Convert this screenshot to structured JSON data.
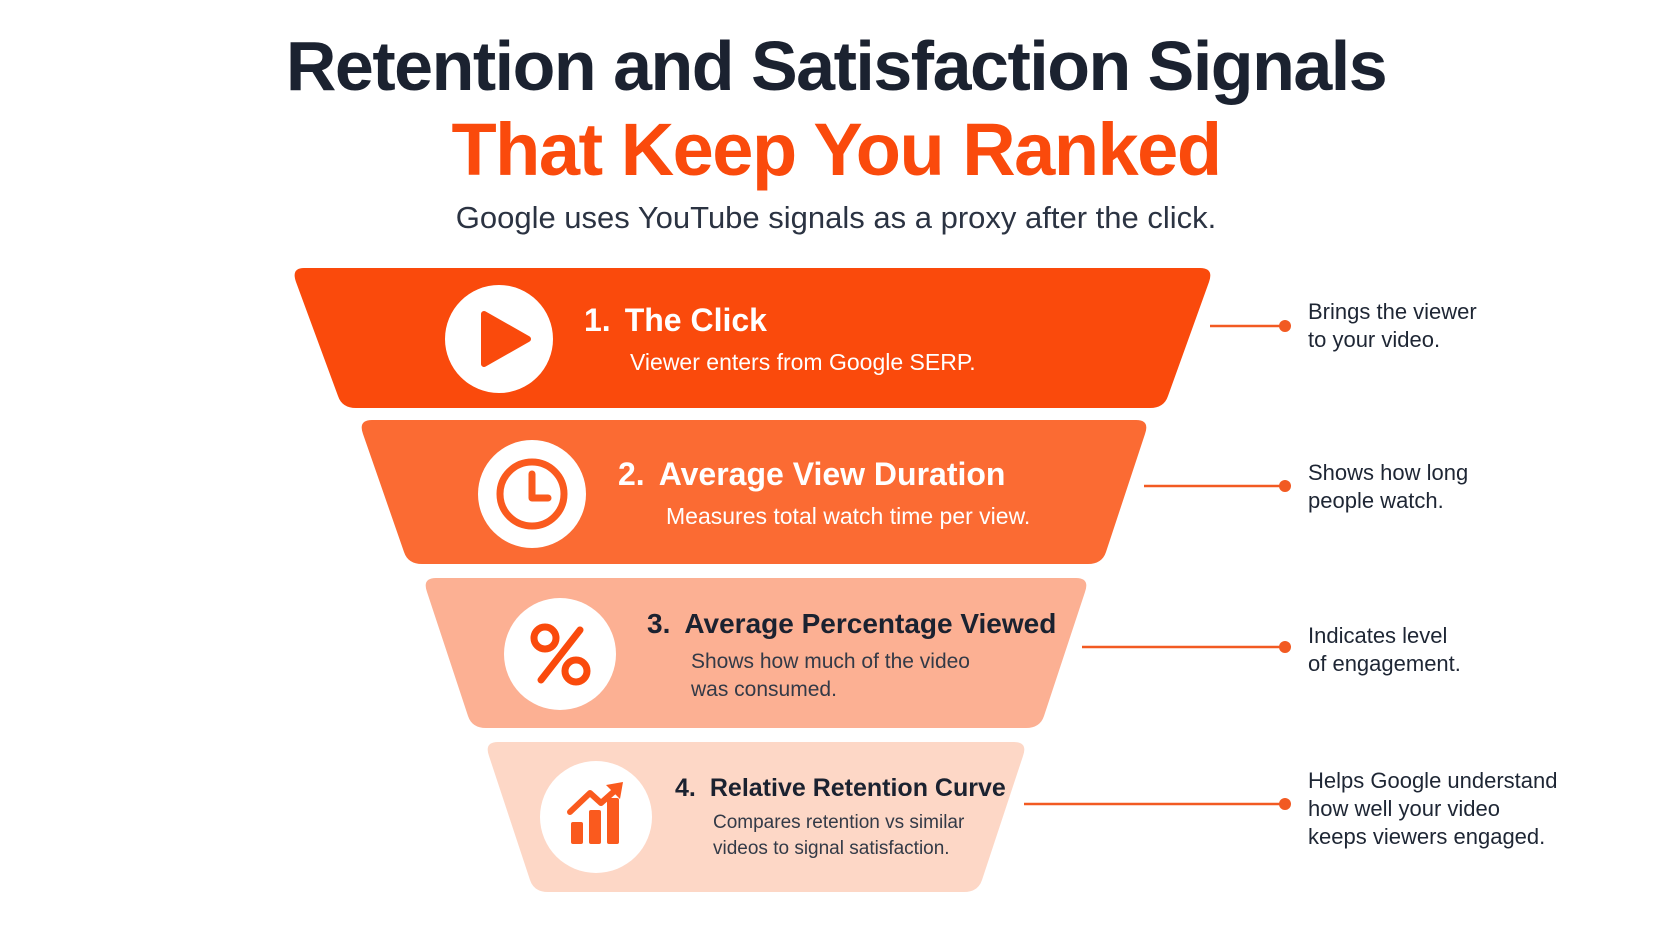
{
  "header": {
    "title_line1": "Retention and Satisfaction Signals",
    "title_line2": "That Keep You Ranked",
    "subtitle": "Google uses YouTube signals as a proxy after the click."
  },
  "colors": {
    "accent": "#fa4a0c",
    "stage1": "#fa4a0c",
    "stage2": "#fb6b33",
    "stage3": "#fcb093",
    "stage4": "#fdd7c6",
    "connector": "#f25a22",
    "dark_text": "#1b2230"
  },
  "stages": [
    {
      "number": "1.",
      "title": "The Click",
      "description_line1": "Viewer enters from Google SERP.",
      "description_line2": "",
      "icon": "play-icon",
      "note_lines": [
        "Brings the viewer",
        "to your video."
      ]
    },
    {
      "number": "2.",
      "title": "Average View Duration",
      "description_line1": "Measures total watch time per view.",
      "description_line2": "",
      "icon": "clock-icon",
      "note_lines": [
        "Shows how long",
        "people watch."
      ]
    },
    {
      "number": "3.",
      "title": "Average Percentage Viewed",
      "description_line1": "Shows how much of the video",
      "description_line2": "was consumed.",
      "icon": "percent-icon",
      "note_lines": [
        "Indicates level",
        "of engagement."
      ]
    },
    {
      "number": "4.",
      "title": "Relative Retention Curve",
      "description_line1": "Compares retention vs similar",
      "description_line2": "videos to signal satisfaction.",
      "icon": "growth-chart-icon",
      "note_lines": [
        "Helps Google understand",
        "how well your video",
        "keeps viewers engaged."
      ]
    }
  ]
}
